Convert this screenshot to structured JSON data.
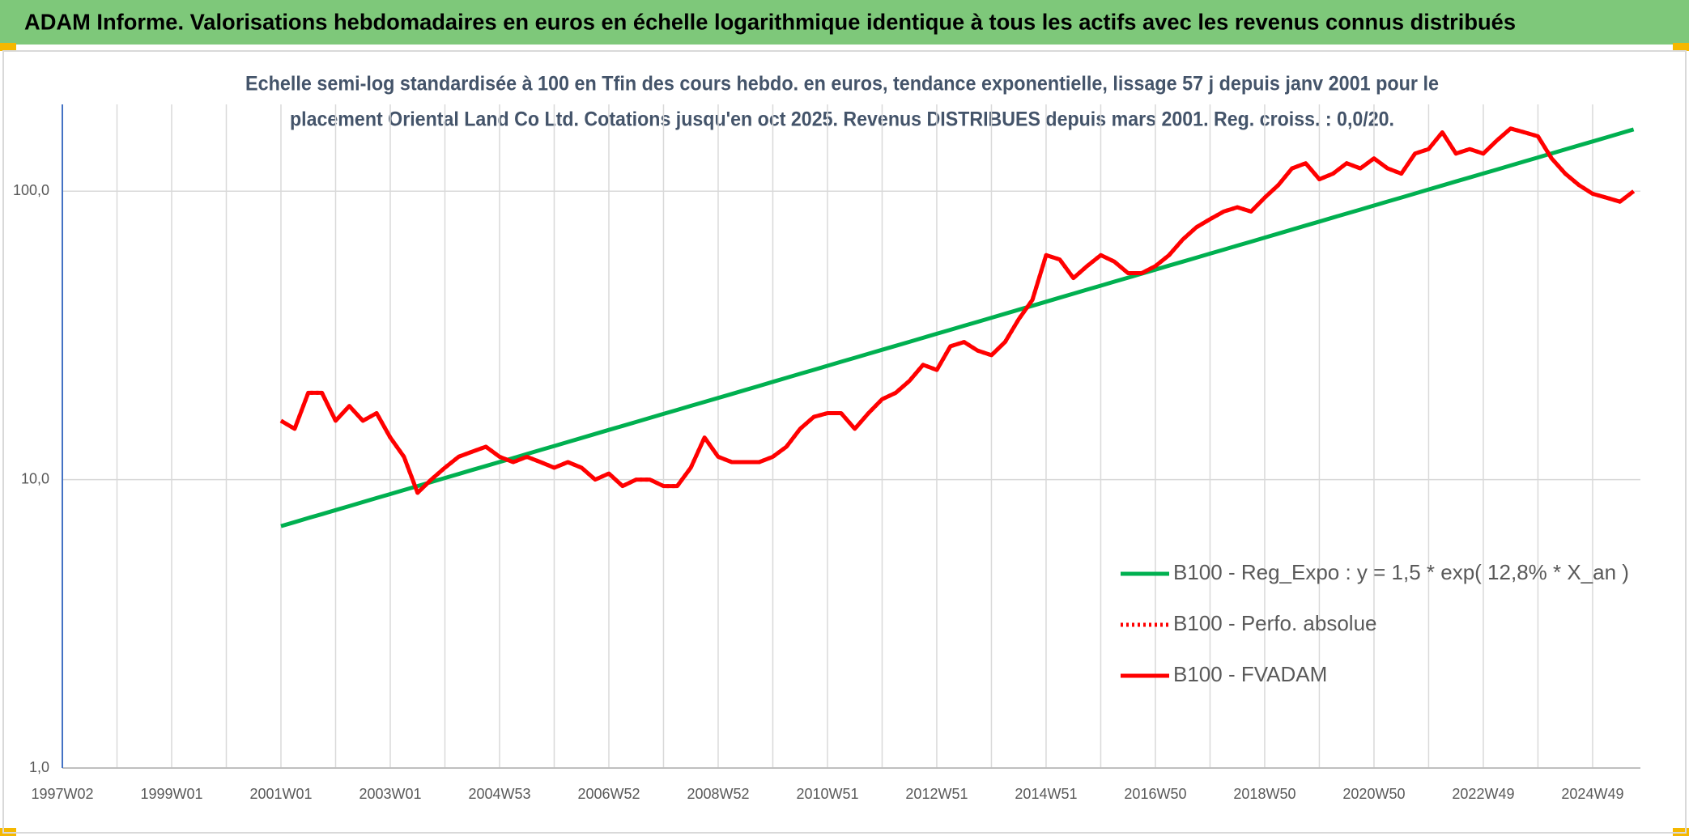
{
  "chart_data": {
    "type": "line",
    "title": "ADAM Informe. Valorisations hebdomadaires en euros en échelle logarithmique identique à tous les actifs avec les revenus connus distribués",
    "subtitle": [
      "Echelle semi-log standardisée à 100 en Tfin des cours hebdo. en euros, tendance exponentielle, lissage 57 j depuis janv 2001 pour le",
      "placement  Oriental Land Co Ltd. Cotations jusqu'en oct 2025. Revenus DISTRIBUES depuis mars 2001. Reg. croiss. : 0,0/20."
    ],
    "log_scale": true,
    "grid": true,
    "legend": "lower-right",
    "ylim": [
      1,
      200
    ],
    "yticks": [
      {
        "value": 1,
        "label": "1,0"
      },
      {
        "value": 10,
        "label": "10,0"
      },
      {
        "value": 100,
        "label": "100,0"
      }
    ],
    "categories": [
      "1997W02",
      null,
      null,
      null,
      null,
      null,
      null,
      null,
      "1999W01",
      null,
      null,
      null,
      null,
      null,
      null,
      null,
      "2001W01",
      null,
      null,
      null,
      null,
      null,
      null,
      null,
      "2003W01",
      null,
      null,
      null,
      null,
      null,
      null,
      null,
      "2004W53",
      null,
      null,
      null,
      null,
      null,
      null,
      null,
      "2006W52",
      null,
      null,
      null,
      null,
      null,
      null,
      null,
      "2008W52",
      null,
      null,
      null,
      null,
      null,
      null,
      null,
      "2010W51",
      null,
      null,
      null,
      null,
      null,
      null,
      null,
      "2012W51",
      null,
      null,
      null,
      null,
      null,
      null,
      null,
      "2014W51",
      null,
      null,
      null,
      null,
      null,
      null,
      null,
      "2016W50",
      null,
      null,
      null,
      null,
      null,
      null,
      null,
      "2018W50",
      null,
      null,
      null,
      null,
      null,
      null,
      null,
      "2020W50",
      null,
      null,
      null,
      null,
      null,
      null,
      null,
      "2022W49",
      null,
      null,
      null,
      null,
      null,
      null,
      null,
      "2024W49",
      null,
      null,
      null
    ],
    "series": [
      {
        "name": "B100 - Reg_Expo : y = 1,5 * exp( 12,8% *  X_an )",
        "color": "#00b050",
        "style": "solid",
        "values": [
          null,
          null,
          null,
          null,
          null,
          null,
          null,
          null,
          null,
          null,
          null,
          null,
          null,
          null,
          null,
          null,
          6.9,
          7.12,
          7.36,
          7.59,
          7.84,
          8.09,
          8.36,
          8.63,
          8.91,
          9.2,
          9.5,
          9.81,
          10.13,
          10.46,
          10.8,
          11.15,
          11.51,
          11.88,
          12.27,
          12.67,
          13.08,
          13.51,
          13.94,
          14.4,
          14.87,
          15.35,
          15.85,
          16.37,
          16.9,
          17.45,
          18.02,
          18.6,
          19.2,
          19.82,
          20.47,
          21.13,
          21.83,
          22.54,
          23.27,
          24.03,
          24.81,
          25.62,
          26.45,
          27.31,
          28.19,
          29.11,
          30.05,
          31.03,
          32.04,
          33.08,
          34.16,
          35.27,
          36.41,
          37.59,
          38.82,
          40.08,
          41.39,
          42.74,
          44.13,
          45.56,
          47.04,
          48.57,
          50.15,
          51.78,
          53.46,
          55.2,
          56.99,
          58.84,
          60.75,
          62.72,
          64.77,
          66.87,
          69.05,
          71.29,
          73.61,
          76.0,
          78.47,
          81.02,
          83.66,
          86.37,
          89.18,
          92.08,
          95.07,
          98.16,
          101.4,
          104.7,
          108.1,
          111.6,
          115.2,
          118.9,
          122.8,
          126.8,
          130.9,
          135.2,
          139.6,
          144.1,
          148.8,
          153.6,
          158.6,
          163.8
        ]
      },
      {
        "name": "B100 - Perfo. absolue",
        "color": "#ff0000",
        "style": "dotted",
        "values": [
          null,
          null,
          null,
          null,
          null,
          null,
          null,
          null,
          null,
          null,
          null,
          null,
          null,
          null,
          null,
          null,
          16,
          15,
          20,
          20,
          16,
          18,
          16,
          17,
          14,
          12,
          9,
          10,
          11,
          12,
          12.5,
          13,
          12,
          11.5,
          12,
          11.5,
          11,
          11.5,
          11,
          10,
          10.5,
          9.5,
          10,
          10,
          9.5,
          9.5,
          11,
          14,
          12,
          11.5,
          11.5,
          11.5,
          12,
          13,
          15,
          16.5,
          17,
          17,
          15,
          17,
          19,
          20,
          22,
          25,
          24,
          29,
          30,
          28,
          27,
          30,
          36,
          42,
          60,
          58,
          50,
          55,
          60,
          57,
          52,
          52,
          55,
          60,
          68,
          75,
          80,
          85,
          88,
          85,
          95,
          105,
          120,
          125,
          110,
          115,
          125,
          120,
          130,
          120,
          115,
          135,
          140,
          160,
          135,
          140,
          135,
          150,
          165,
          160,
          155,
          130,
          115,
          105,
          98,
          95,
          92,
          100
        ]
      },
      {
        "name": "B100 - FVADAM",
        "color": "#ff0000",
        "style": "solid",
        "values": [
          null,
          null,
          null,
          null,
          null,
          null,
          null,
          null,
          null,
          null,
          null,
          null,
          null,
          null,
          null,
          null,
          16,
          15,
          20,
          20,
          16,
          18,
          16,
          17,
          14,
          12,
          9,
          10,
          11,
          12,
          12.5,
          13,
          12,
          11.5,
          12,
          11.5,
          11,
          11.5,
          11,
          10,
          10.5,
          9.5,
          10,
          10,
          9.5,
          9.5,
          11,
          14,
          12,
          11.5,
          11.5,
          11.5,
          12,
          13,
          15,
          16.5,
          17,
          17,
          15,
          17,
          19,
          20,
          22,
          25,
          24,
          29,
          30,
          28,
          27,
          30,
          36,
          42,
          60,
          58,
          50,
          55,
          60,
          57,
          52,
          52,
          55,
          60,
          68,
          75,
          80,
          85,
          88,
          85,
          95,
          105,
          120,
          125,
          110,
          115,
          125,
          120,
          130,
          120,
          115,
          135,
          140,
          160,
          135,
          140,
          135,
          150,
          165,
          160,
          155,
          130,
          115,
          105,
          98,
          95,
          92,
          100
        ]
      }
    ]
  }
}
